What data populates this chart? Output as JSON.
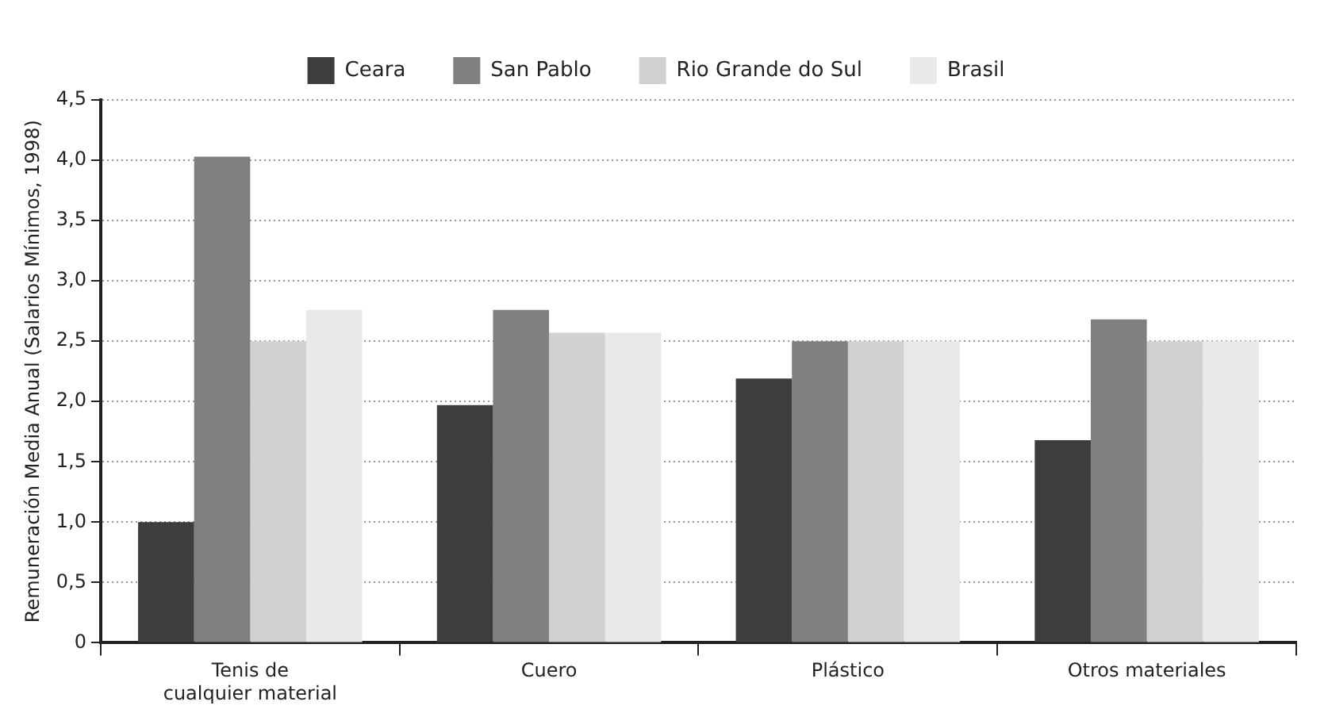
{
  "chart_data": {
    "type": "bar",
    "ylabel": "Remuneración Media Anual (Salarios Mínimos, 1998)",
    "categories": [
      "Tenis de\ncualquier material",
      "Cuero",
      "Plástico",
      "Otros materiales"
    ],
    "series": [
      {
        "name": "Ceara",
        "color": "#3d3d3d",
        "values": [
          1.0,
          1.97,
          2.19,
          1.68
        ]
      },
      {
        "name": "San Pablo",
        "color": "#808083",
        "values": [
          4.03,
          2.76,
          2.5,
          2.68
        ]
      },
      {
        "name": "Rio Grande do Sul",
        "color": "#d0d1d3",
        "values": [
          2.5,
          2.57,
          2.5,
          2.5
        ]
      },
      {
        "name": "Brasil",
        "color": "#e9e9eb",
        "values": [
          2.76,
          2.57,
          2.5,
          2.5
        ]
      }
    ],
    "ylim": [
      0,
      4.5
    ],
    "yticks": [
      0,
      {
        "value": 0.5,
        "label": "0,5"
      },
      {
        "value": 1,
        "label": "1,0"
      },
      {
        "value": 1.5,
        "label": "1,5"
      },
      {
        "value": 2,
        "label": "2,0"
      },
      {
        "value": 2.5,
        "label": "2,5"
      },
      {
        "value": 3,
        "label": "3,0"
      },
      {
        "value": 3.5,
        "label": "3,5"
      },
      {
        "value": 4,
        "label": "4,0"
      },
      {
        "value": 4.5,
        "label": "4,5"
      }
    ],
    "grid": "y",
    "legend": "top"
  }
}
